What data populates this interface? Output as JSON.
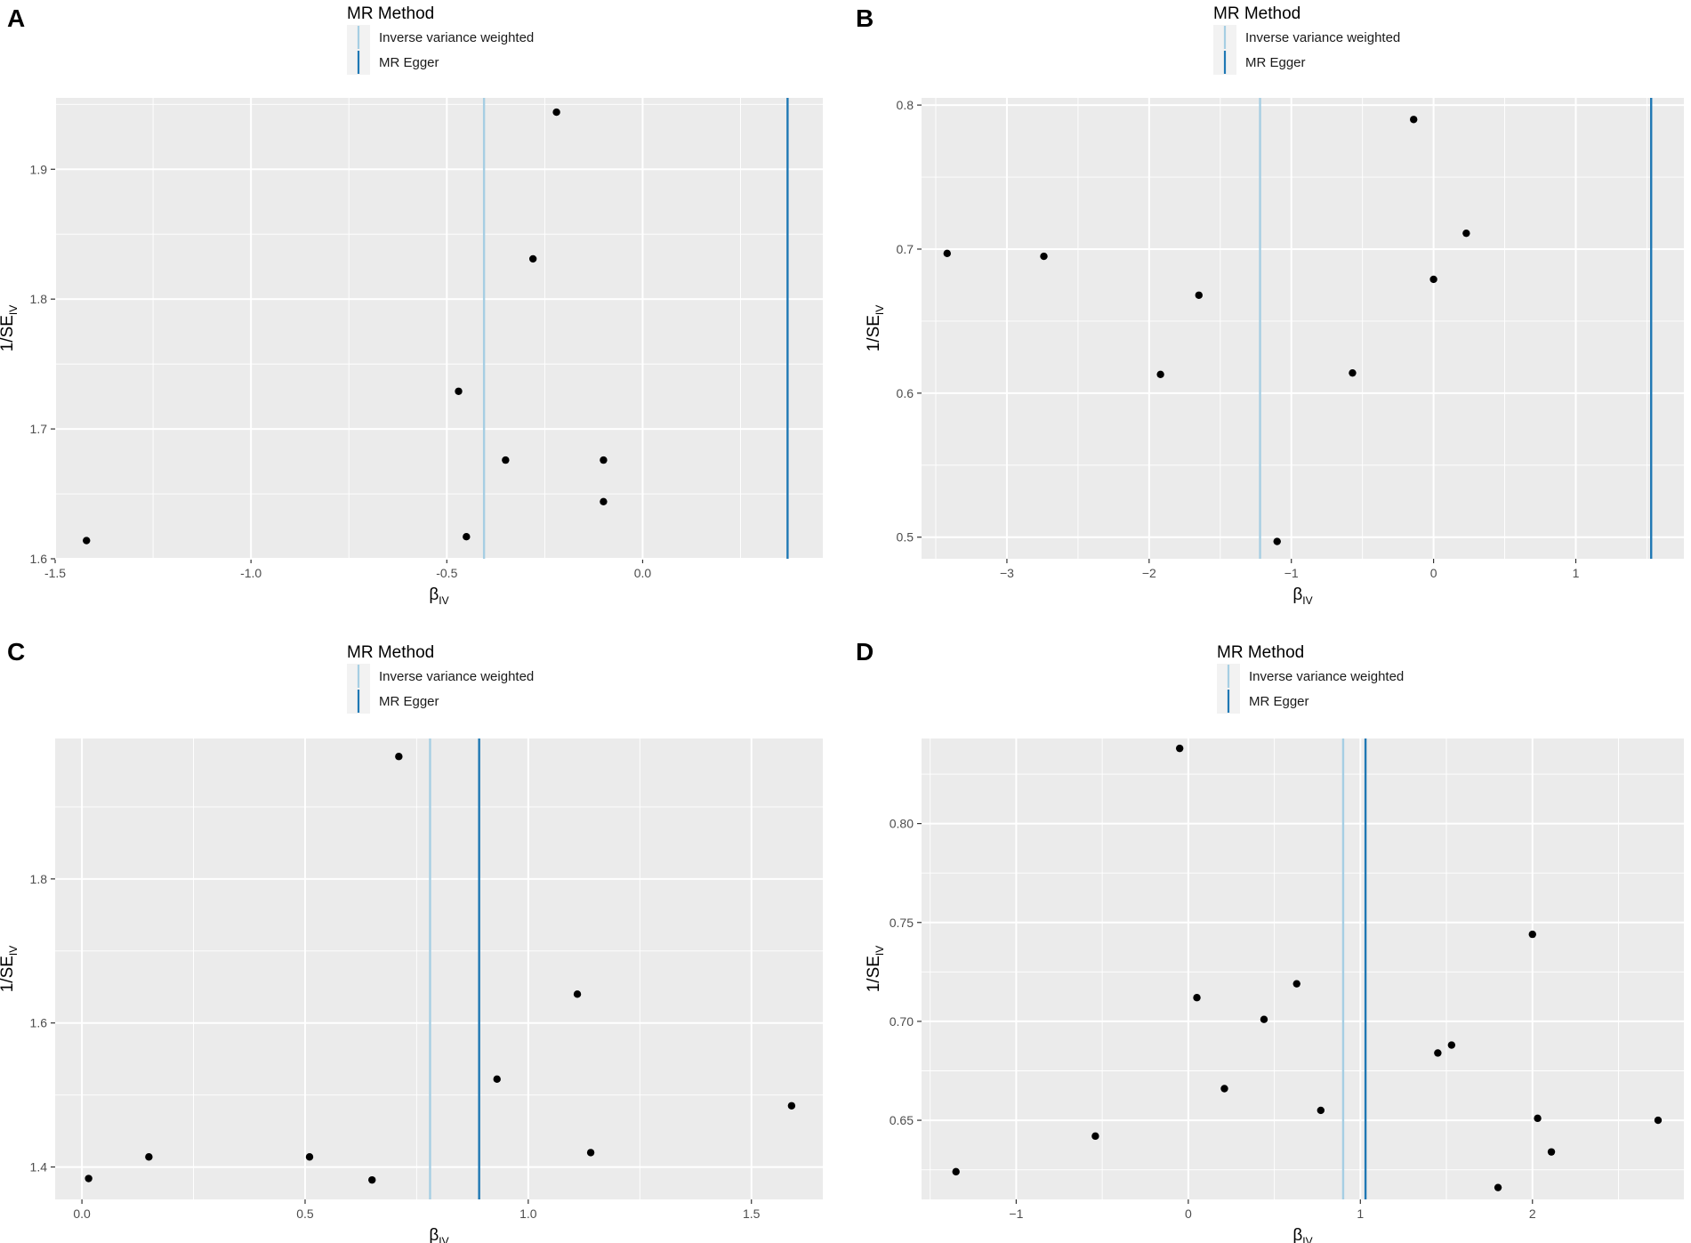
{
  "chart_data": [
    {
      "panel": "A",
      "type": "scatter",
      "legend_title": "MR Method",
      "legend_entries": [
        {
          "name": "Inverse variance weighted",
          "color": "#a6cee3"
        },
        {
          "name": "MR Egger",
          "color": "#1f78b4"
        }
      ],
      "xlabel_main": "β",
      "xlabel_sub": "IV",
      "ylabel_main": "1/SE",
      "ylabel_sub": "IV",
      "xlim": [
        -1.5,
        0.46
      ],
      "ylim": [
        1.6,
        1.955
      ],
      "xticks": [
        -1.5,
        -1.0,
        -0.5,
        0.0
      ],
      "xtick_labels": [
        "-1.5",
        "-1.0",
        "-0.5",
        "0.0"
      ],
      "yticks": [
        1.6,
        1.7,
        1.8,
        1.9
      ],
      "ytick_labels": [
        "1.6",
        "1.7",
        "1.8",
        "1.9"
      ],
      "vlines": [
        {
          "name": "Inverse variance weighted",
          "x": -0.405
        },
        {
          "name": "MR Egger",
          "x": 0.37
        }
      ],
      "points": [
        {
          "x": -1.42,
          "y": 1.614
        },
        {
          "x": -0.45,
          "y": 1.617
        },
        {
          "x": -0.47,
          "y": 1.729
        },
        {
          "x": -0.35,
          "y": 1.676
        },
        {
          "x": -0.28,
          "y": 1.831
        },
        {
          "x": -0.22,
          "y": 1.944
        },
        {
          "x": -0.1,
          "y": 1.676
        },
        {
          "x": -0.1,
          "y": 1.644
        }
      ]
    },
    {
      "panel": "B",
      "type": "scatter",
      "legend_title": "MR Method",
      "legend_entries": [
        {
          "name": "Inverse variance weighted",
          "color": "#a6cee3"
        },
        {
          "name": "MR Egger",
          "color": "#1f78b4"
        }
      ],
      "xlabel_main": "β",
      "xlabel_sub": "IV",
      "ylabel_main": "1/SE",
      "ylabel_sub": "IV",
      "xlim": [
        -3.6,
        1.76
      ],
      "ylim": [
        0.485,
        0.805
      ],
      "xticks": [
        -3,
        -2,
        -1,
        0,
        1
      ],
      "xtick_labels": [
        "−3",
        "−2",
        "−1",
        "0",
        "1"
      ],
      "yticks": [
        0.5,
        0.6,
        0.7,
        0.8
      ],
      "ytick_labels": [
        "0.5",
        "0.6",
        "0.7",
        "0.8"
      ],
      "vlines": [
        {
          "name": "Inverse variance weighted",
          "x": -1.22
        },
        {
          "name": "MR Egger",
          "x": 1.53
        }
      ],
      "points": [
        {
          "x": -3.42,
          "y": 0.697
        },
        {
          "x": -2.74,
          "y": 0.695
        },
        {
          "x": -1.92,
          "y": 0.613
        },
        {
          "x": -1.65,
          "y": 0.668
        },
        {
          "x": -1.1,
          "y": 0.497
        },
        {
          "x": -0.57,
          "y": 0.614
        },
        {
          "x": -0.14,
          "y": 0.79
        },
        {
          "x": 0.0,
          "y": 0.679
        },
        {
          "x": 0.23,
          "y": 0.711
        }
      ]
    },
    {
      "panel": "C",
      "type": "scatter",
      "legend_title": "MR Method",
      "legend_entries": [
        {
          "name": "Inverse variance weighted",
          "color": "#a6cee3"
        },
        {
          "name": "MR Egger",
          "color": "#1f78b4"
        }
      ],
      "xlabel_main": "β",
      "xlabel_sub": "IV",
      "ylabel_main": "1/SE",
      "ylabel_sub": "IV",
      "xlim": [
        -0.06,
        1.66
      ],
      "ylim": [
        1.355,
        1.995
      ],
      "xticks": [
        0.0,
        0.5,
        1.0,
        1.5
      ],
      "xtick_labels": [
        "0.0",
        "0.5",
        "1.0",
        "1.5"
      ],
      "yticks": [
        1.4,
        1.6,
        1.8
      ],
      "ytick_labels": [
        "1.4",
        "1.6",
        "1.8"
      ],
      "vlines": [
        {
          "name": "Inverse variance weighted",
          "x": 0.78
        },
        {
          "name": "MR Egger",
          "x": 0.89
        }
      ],
      "points": [
        {
          "x": 0.015,
          "y": 1.384
        },
        {
          "x": 0.15,
          "y": 1.414
        },
        {
          "x": 0.51,
          "y": 1.414
        },
        {
          "x": 0.65,
          "y": 1.382
        },
        {
          "x": 0.71,
          "y": 1.97
        },
        {
          "x": 0.93,
          "y": 1.522
        },
        {
          "x": 1.11,
          "y": 1.64
        },
        {
          "x": 1.14,
          "y": 1.42
        },
        {
          "x": 1.59,
          "y": 1.485
        }
      ]
    },
    {
      "panel": "D",
      "type": "scatter",
      "legend_title": "MR Method",
      "legend_entries": [
        {
          "name": "Inverse variance weighted",
          "color": "#a6cee3"
        },
        {
          "name": "MR Egger",
          "color": "#1f78b4"
        }
      ],
      "xlabel_main": "β",
      "xlabel_sub": "IV",
      "ylabel_main": "1/SE",
      "ylabel_sub": "IV",
      "xlim": [
        -1.55,
        2.88
      ],
      "ylim": [
        0.61,
        0.843
      ],
      "xticks": [
        -1,
        0,
        1,
        2
      ],
      "xtick_labels": [
        "−1",
        "0",
        "1",
        "2"
      ],
      "yticks": [
        0.65,
        0.7,
        0.75,
        0.8
      ],
      "ytick_labels": [
        "0.65",
        "0.70",
        "0.75",
        "0.80"
      ],
      "vlines": [
        {
          "name": "Inverse variance weighted",
          "x": 0.9
        },
        {
          "name": "MR Egger",
          "x": 1.03
        }
      ],
      "points": [
        {
          "x": -1.35,
          "y": 0.624
        },
        {
          "x": -0.54,
          "y": 0.642
        },
        {
          "x": -0.05,
          "y": 0.838
        },
        {
          "x": 0.05,
          "y": 0.712
        },
        {
          "x": 0.21,
          "y": 0.666
        },
        {
          "x": 0.44,
          "y": 0.701
        },
        {
          "x": 0.63,
          "y": 0.719
        },
        {
          "x": 0.77,
          "y": 0.655
        },
        {
          "x": 1.45,
          "y": 0.684
        },
        {
          "x": 1.53,
          "y": 0.688
        },
        {
          "x": 1.8,
          "y": 0.616
        },
        {
          "x": 2.0,
          "y": 0.744
        },
        {
          "x": 2.03,
          "y": 0.651
        },
        {
          "x": 2.11,
          "y": 0.634
        },
        {
          "x": 2.73,
          "y": 0.65
        }
      ]
    }
  ]
}
